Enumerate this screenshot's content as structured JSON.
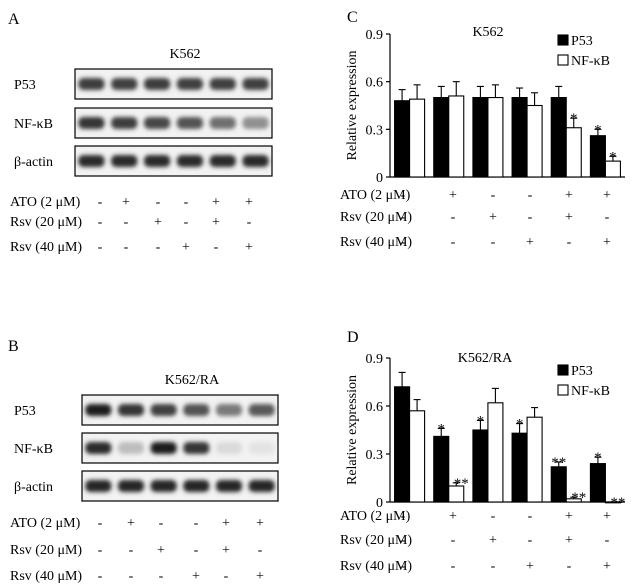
{
  "panels": {
    "A": {
      "letter": "A",
      "title": "K562",
      "lanes": 6,
      "bands": [
        {
          "label": "P53",
          "intensity": [
            0.82,
            0.8,
            0.82,
            0.8,
            0.8,
            0.8
          ]
        },
        {
          "label": "NF-κB",
          "intensity": [
            0.85,
            0.82,
            0.78,
            0.72,
            0.6,
            0.45
          ]
        },
        {
          "label": "β-actin",
          "intensity": [
            0.9,
            0.9,
            0.9,
            0.9,
            0.9,
            0.9
          ]
        }
      ]
    },
    "B": {
      "letter": "B",
      "title": "K562/RA",
      "lanes": 6,
      "bands": [
        {
          "label": "P53",
          "intensity": [
            0.95,
            0.85,
            0.8,
            0.72,
            0.55,
            0.7
          ]
        },
        {
          "label": "NF-κB",
          "intensity": [
            0.9,
            0.25,
            0.95,
            0.85,
            0.12,
            0.08
          ]
        },
        {
          "label": "β-actin",
          "intensity": [
            0.92,
            0.92,
            0.92,
            0.92,
            0.92,
            0.92
          ]
        }
      ]
    }
  },
  "treatments": {
    "rows": [
      "ATO (2 μM)",
      "Rsv (20 μM)",
      "Rsv (40 μM)"
    ],
    "matrix": [
      [
        "-",
        "+",
        "-",
        "-",
        "+",
        "+"
      ],
      [
        "-",
        "-",
        "+",
        "-",
        "+",
        "-"
      ],
      [
        "-",
        "-",
        "-",
        "+",
        "-",
        "+"
      ]
    ]
  },
  "chart_data": [
    {
      "type": "bar",
      "letter": "C",
      "title": "K562",
      "ylabel": "Relative expression",
      "ylim": [
        0,
        0.9
      ],
      "yticks": [
        "0",
        "0.3",
        "0.6",
        "0.9"
      ],
      "legend_position": "top-right",
      "series": [
        {
          "name": "P53",
          "color": "#000000",
          "values": [
            0.48,
            0.5,
            0.5,
            0.5,
            0.5,
            0.26
          ],
          "errors": [
            0.07,
            0.07,
            0.07,
            0.06,
            0.07,
            0.04
          ],
          "marks": [
            "",
            "",
            "",
            "",
            "",
            "*"
          ]
        },
        {
          "name": "NF-κB",
          "color": "#ffffff",
          "values": [
            0.49,
            0.51,
            0.5,
            0.45,
            0.31,
            0.1
          ],
          "errors": [
            0.09,
            0.09,
            0.08,
            0.08,
            0.06,
            0.03
          ],
          "marks": [
            "",
            "",
            "",
            "",
            "*",
            "*"
          ]
        }
      ]
    },
    {
      "type": "bar",
      "letter": "D",
      "title": "K562/RA",
      "ylabel": "Relative expression",
      "ylim": [
        0,
        0.9
      ],
      "yticks": [
        "0",
        "0.3",
        "0.6",
        "0.9"
      ],
      "legend_position": "top-right",
      "series": [
        {
          "name": "P53",
          "color": "#000000",
          "values": [
            0.72,
            0.41,
            0.45,
            0.43,
            0.22,
            0.24
          ],
          "errors": [
            0.09,
            0.05,
            0.06,
            0.06,
            0.03,
            0.04
          ],
          "marks": [
            "",
            "*",
            "*",
            "*",
            "**",
            "*"
          ]
        },
        {
          "name": "NF-κB",
          "color": "#ffffff",
          "values": [
            0.57,
            0.1,
            0.62,
            0.53,
            0.02,
            0.0
          ],
          "errors": [
            0.07,
            0.02,
            0.09,
            0.06,
            0.01,
            0.0
          ],
          "marks": [
            "",
            "**",
            "",
            "",
            "**",
            "**"
          ]
        }
      ]
    }
  ]
}
